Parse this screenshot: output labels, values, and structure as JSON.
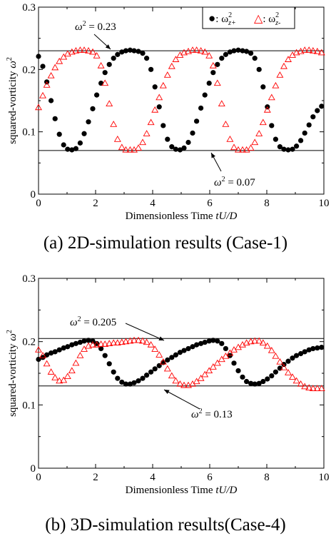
{
  "chart_data": [
    {
      "type": "scatter",
      "caption": "(a) 2D-simulation results (Case-1)",
      "xlabel_text": "Dimensionless Time ",
      "xlabel_var": "tU/D",
      "ylabel_text": "squared-vorticity ",
      "ylabel_var": "ω",
      "ylabel_sup": "2",
      "xlim": [
        0,
        10
      ],
      "ylim": [
        0,
        0.3
      ],
      "xticks": [
        {
          "v": 0,
          "label": "0"
        },
        {
          "v": 2,
          "label": "2"
        },
        {
          "v": 4,
          "label": "4"
        },
        {
          "v": 6,
          "label": "6"
        },
        {
          "v": 8,
          "label": "8"
        },
        {
          "v": 10,
          "label": "10"
        }
      ],
      "yticks": [
        {
          "v": 0,
          "label": "0"
        },
        {
          "v": 0.1,
          "label": "0.1"
        },
        {
          "v": 0.2,
          "label": "0.2"
        },
        {
          "v": 0.3,
          "label": "0.3"
        }
      ],
      "grid": false,
      "legend_position": "top-right",
      "legend": [
        {
          "sym": "●",
          "pre": ": ω",
          "sup": "2",
          "sub": "z+"
        },
        {
          "sym": "△",
          "pre": ": ω",
          "sup": "2",
          "sub": "z-"
        }
      ],
      "reference_lines": [
        {
          "y": 0.23,
          "label_base": "ω",
          "label_sup": "2",
          "label_val": " = 0.23"
        },
        {
          "y": 0.07,
          "label_base": "ω",
          "label_sup": "2",
          "label_val": " = 0.07"
        }
      ],
      "series": [
        {
          "marker": "filled-circle",
          "color": "#000000",
          "x": [
            0.0,
            0.15,
            0.29,
            0.44,
            0.58,
            0.73,
            0.88,
            1.02,
            1.17,
            1.31,
            1.46,
            1.6,
            1.75,
            1.9,
            2.04,
            2.19,
            2.33,
            2.48,
            2.63,
            2.77,
            2.92,
            3.06,
            3.21,
            3.35,
            3.5,
            3.65,
            3.79,
            3.94,
            4.08,
            4.23,
            4.37,
            4.52,
            4.67,
            4.81,
            4.96,
            5.1,
            5.25,
            5.4,
            5.54,
            5.69,
            5.83,
            5.98,
            6.12,
            6.27,
            6.42,
            6.56,
            6.71,
            6.85,
            7.0,
            7.15,
            7.29,
            7.44,
            7.58,
            7.73,
            7.87,
            8.02,
            8.17,
            8.31,
            8.46,
            8.6,
            8.75,
            8.9,
            9.04,
            9.19,
            9.33,
            9.48,
            9.62,
            9.77,
            9.92
          ],
          "y": [
            0.221,
            0.205,
            0.18,
            0.15,
            0.121,
            0.096,
            0.079,
            0.072,
            0.071,
            0.073,
            0.082,
            0.097,
            0.116,
            0.137,
            0.159,
            0.178,
            0.195,
            0.208,
            0.218,
            0.224,
            0.228,
            0.23,
            0.231,
            0.23,
            0.229,
            0.226,
            0.218,
            0.2,
            0.172,
            0.14,
            0.11,
            0.088,
            0.076,
            0.072,
            0.071,
            0.074,
            0.083,
            0.098,
            0.117,
            0.138,
            0.159,
            0.178,
            0.195,
            0.208,
            0.218,
            0.224,
            0.228,
            0.23,
            0.231,
            0.23,
            0.229,
            0.226,
            0.218,
            0.2,
            0.172,
            0.14,
            0.11,
            0.088,
            0.076,
            0.072,
            0.071,
            0.072,
            0.077,
            0.086,
            0.098,
            0.111,
            0.124,
            0.134,
            0.141
          ]
        },
        {
          "marker": "open-triangle",
          "color": "#ff0000",
          "x": [
            0.0,
            0.15,
            0.29,
            0.44,
            0.58,
            0.73,
            0.88,
            1.02,
            1.17,
            1.31,
            1.46,
            1.6,
            1.75,
            1.9,
            2.04,
            2.19,
            2.33,
            2.48,
            2.63,
            2.77,
            2.92,
            3.06,
            3.21,
            3.35,
            3.5,
            3.65,
            3.79,
            3.94,
            4.08,
            4.23,
            4.37,
            4.52,
            4.67,
            4.81,
            4.96,
            5.1,
            5.25,
            5.4,
            5.54,
            5.69,
            5.83,
            5.98,
            6.12,
            6.27,
            6.42,
            6.56,
            6.71,
            6.85,
            7.0,
            7.15,
            7.29,
            7.44,
            7.58,
            7.73,
            7.87,
            8.02,
            8.17,
            8.31,
            8.46,
            8.6,
            8.75,
            8.9,
            9.04,
            9.19,
            9.33,
            9.48,
            9.62,
            9.77,
            9.92
          ],
          "y": [
            0.139,
            0.158,
            0.175,
            0.19,
            0.203,
            0.213,
            0.22,
            0.225,
            0.228,
            0.23,
            0.231,
            0.231,
            0.23,
            0.228,
            0.222,
            0.206,
            0.178,
            0.145,
            0.112,
            0.088,
            0.075,
            0.071,
            0.071,
            0.071,
            0.074,
            0.083,
            0.097,
            0.115,
            0.135,
            0.155,
            0.174,
            0.191,
            0.205,
            0.216,
            0.223,
            0.227,
            0.229,
            0.231,
            0.231,
            0.23,
            0.228,
            0.222,
            0.206,
            0.178,
            0.145,
            0.112,
            0.088,
            0.075,
            0.071,
            0.071,
            0.071,
            0.074,
            0.083,
            0.097,
            0.115,
            0.135,
            0.155,
            0.174,
            0.191,
            0.205,
            0.216,
            0.223,
            0.227,
            0.229,
            0.231,
            0.231,
            0.23,
            0.229,
            0.227
          ]
        }
      ]
    },
    {
      "type": "scatter",
      "caption": "(b) 3D-simulation results(Case-4)",
      "xlabel_text": "Dimensionless Time ",
      "xlabel_var": "tU/D",
      "ylabel_text": "squared-vorticity ",
      "ylabel_var": "ω",
      "ylabel_sup": "2",
      "xlim": [
        0,
        10
      ],
      "ylim": [
        0,
        0.3
      ],
      "xticks": [
        {
          "v": 0,
          "label": "0"
        },
        {
          "v": 2,
          "label": "2"
        },
        {
          "v": 4,
          "label": "4"
        },
        {
          "v": 6,
          "label": "6"
        },
        {
          "v": 8,
          "label": "8"
        },
        {
          "v": 10,
          "label": "10"
        }
      ],
      "yticks": [
        {
          "v": 0,
          "label": "0"
        },
        {
          "v": 0.1,
          "label": "0.1"
        },
        {
          "v": 0.2,
          "label": "0.2"
        },
        {
          "v": 0.3,
          "label": "0.3"
        }
      ],
      "grid": false,
      "legend": [],
      "reference_lines": [
        {
          "y": 0.205,
          "label_base": "ω",
          "label_sup": "2",
          "label_val": " = 0.205"
        },
        {
          "y": 0.13,
          "label_base": "ω",
          "label_sup": "2",
          "label_val": " = 0.13"
        }
      ],
      "series": [
        {
          "marker": "filled-circle",
          "color": "#000000",
          "x": [
            0.0,
            0.15,
            0.29,
            0.44,
            0.58,
            0.73,
            0.88,
            1.02,
            1.17,
            1.31,
            1.46,
            1.6,
            1.75,
            1.9,
            2.04,
            2.19,
            2.33,
            2.48,
            2.63,
            2.77,
            2.92,
            3.06,
            3.21,
            3.35,
            3.5,
            3.65,
            3.79,
            3.94,
            4.08,
            4.23,
            4.37,
            4.52,
            4.67,
            4.81,
            4.96,
            5.1,
            5.25,
            5.4,
            5.54,
            5.69,
            5.83,
            5.98,
            6.12,
            6.27,
            6.42,
            6.56,
            6.71,
            6.85,
            7.0,
            7.15,
            7.29,
            7.44,
            7.58,
            7.73,
            7.87,
            8.02,
            8.17,
            8.31,
            8.46,
            8.6,
            8.75,
            8.9,
            9.04,
            9.19,
            9.33,
            9.48,
            9.62,
            9.77,
            9.92
          ],
          "y": [
            0.172,
            0.175,
            0.179,
            0.182,
            0.184,
            0.187,
            0.19,
            0.192,
            0.195,
            0.197,
            0.199,
            0.201,
            0.202,
            0.201,
            0.197,
            0.189,
            0.178,
            0.165,
            0.152,
            0.142,
            0.136,
            0.133,
            0.133,
            0.135,
            0.138,
            0.142,
            0.147,
            0.152,
            0.157,
            0.162,
            0.167,
            0.171,
            0.175,
            0.179,
            0.183,
            0.186,
            0.189,
            0.192,
            0.195,
            0.197,
            0.199,
            0.201,
            0.202,
            0.201,
            0.197,
            0.189,
            0.178,
            0.166,
            0.154,
            0.144,
            0.137,
            0.134,
            0.133,
            0.134,
            0.137,
            0.141,
            0.146,
            0.152,
            0.158,
            0.164,
            0.169,
            0.174,
            0.178,
            0.181,
            0.184,
            0.187,
            0.189,
            0.19,
            0.191
          ]
        },
        {
          "marker": "open-triangle",
          "color": "#ff0000",
          "x": [
            0.0,
            0.15,
            0.29,
            0.44,
            0.58,
            0.73,
            0.88,
            1.02,
            1.17,
            1.31,
            1.46,
            1.6,
            1.75,
            1.9,
            2.04,
            2.19,
            2.33,
            2.48,
            2.63,
            2.77,
            2.92,
            3.06,
            3.21,
            3.35,
            3.5,
            3.65,
            3.79,
            3.94,
            4.08,
            4.23,
            4.37,
            4.52,
            4.67,
            4.81,
            4.96,
            5.1,
            5.25,
            5.4,
            5.54,
            5.69,
            5.83,
            5.98,
            6.12,
            6.27,
            6.42,
            6.56,
            6.71,
            6.85,
            7.0,
            7.15,
            7.29,
            7.44,
            7.58,
            7.73,
            7.87,
            8.02,
            8.17,
            8.31,
            8.46,
            8.6,
            8.75,
            8.9,
            9.04,
            9.19,
            9.33,
            9.48,
            9.62,
            9.77,
            9.92
          ],
          "y": [
            0.187,
            0.178,
            0.165,
            0.152,
            0.143,
            0.138,
            0.139,
            0.145,
            0.154,
            0.166,
            0.178,
            0.188,
            0.193,
            0.195,
            0.195,
            0.196,
            0.196,
            0.197,
            0.198,
            0.198,
            0.199,
            0.2,
            0.201,
            0.202,
            0.202,
            0.201,
            0.199,
            0.195,
            0.188,
            0.179,
            0.168,
            0.157,
            0.146,
            0.138,
            0.133,
            0.131,
            0.131,
            0.133,
            0.137,
            0.142,
            0.148,
            0.154,
            0.16,
            0.166,
            0.172,
            0.177,
            0.182,
            0.187,
            0.191,
            0.195,
            0.198,
            0.2,
            0.201,
            0.201,
            0.198,
            0.193,
            0.186,
            0.177,
            0.168,
            0.159,
            0.151,
            0.144,
            0.138,
            0.133,
            0.129,
            0.127,
            0.126,
            0.126,
            0.126
          ]
        }
      ]
    }
  ]
}
